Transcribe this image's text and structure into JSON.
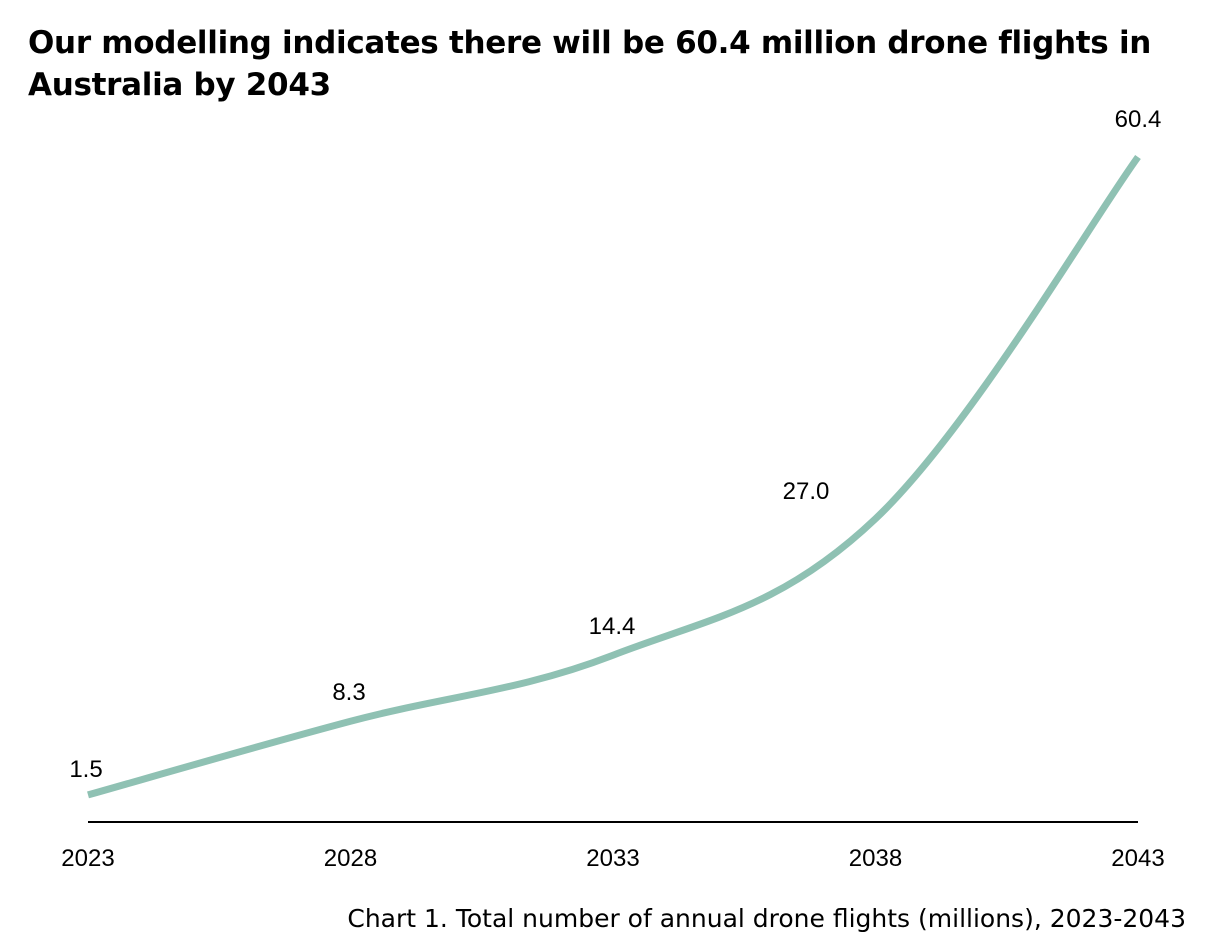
{
  "title": "Our modelling indicates there will be 60.4 million drone flights in Australia by 2043",
  "caption": "Chart 1. Total number of annual drone flights (millions), 2023-2043",
  "colors": {
    "line": "#8fc1b3",
    "axis": "#000000",
    "text": "#000000"
  },
  "chart_data": {
    "type": "line",
    "categories": [
      "2023",
      "2028",
      "2033",
      "2038",
      "2043"
    ],
    "series": [
      {
        "values": [
          1.5,
          8.3,
          14.4,
          27.0,
          60.4
        ],
        "labels": [
          "1.5",
          "8.3",
          "14.4",
          "27.0",
          "60.4"
        ]
      }
    ],
    "title": "Our modelling indicates there will be 60.4 million drone flights in Australia by 2043",
    "xlabel": "",
    "ylabel": "",
    "ylim": [
      0,
      60.4
    ],
    "grid": false,
    "smooth": true
  }
}
